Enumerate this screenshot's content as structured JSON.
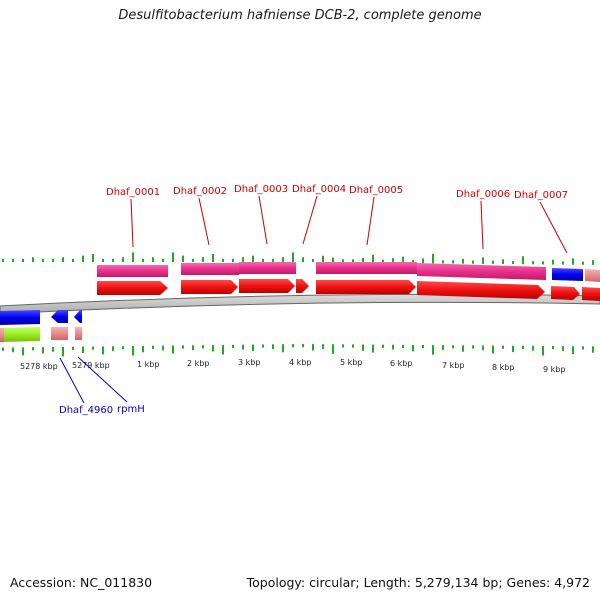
{
  "header": {
    "title": "Desulfitobacterium hafniense DCB-2, complete genome"
  },
  "footer": {
    "accession": "Accession: NC_011830",
    "summary": "Topology: circular; Length: 5,279,134 bp; Genes: 4,972"
  },
  "axis": {
    "tick_labels": [
      "5278 kbp",
      "5279 kbp",
      "1 kbp",
      "2 kbp",
      "3 kbp",
      "4 kbp",
      "5 kbp",
      "6 kbp",
      "7 kbp",
      "8 kbp",
      "9 kbp"
    ]
  },
  "gene_labels_forward": [
    "Dhaf_0001",
    "Dhaf_0002",
    "Dhaf_0003",
    "Dhaf_0004",
    "Dhaf_0005",
    "Dhaf_0006",
    "Dhaf_0007"
  ],
  "gene_labels_reverse": [
    "Dhaf_4960",
    "rpmH"
  ],
  "colors": {
    "forward_label": "#cc0000",
    "reverse_label": "#0000cc",
    "cds_forward": "#ee1111",
    "cds_reverse": "#0000ee",
    "gene_pink": "#e8308a",
    "rna_light": "#e88b8b",
    "rna_green": "#99ee22",
    "gc_bar": "#22aa22",
    "backbone": "#777777"
  }
}
